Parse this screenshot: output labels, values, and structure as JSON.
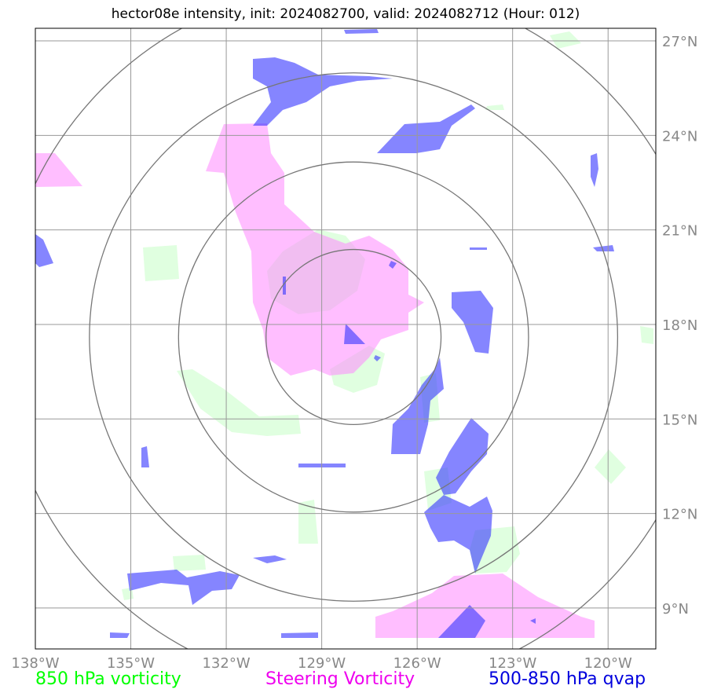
{
  "title": "hector08e intensity, init: 2024082700, valid: 2024082712 (Hour: 012)",
  "map": {
    "lon_range": [
      -138,
      -118.5
    ],
    "lat_range": [
      7.7,
      27.4
    ],
    "lon_ticks": [
      {
        "value": -138,
        "label": "138°W"
      },
      {
        "value": -135,
        "label": "135°W"
      },
      {
        "value": -132,
        "label": "132°W"
      },
      {
        "value": -129,
        "label": "129°W"
      },
      {
        "value": -126,
        "label": "126°W"
      },
      {
        "value": -123,
        "label": "123°W"
      },
      {
        "value": -120,
        "label": "120°W"
      }
    ],
    "lat_ticks": [
      {
        "value": 9,
        "label": "9°N"
      },
      {
        "value": 12,
        "label": "12°N"
      },
      {
        "value": 15,
        "label": "15°N"
      },
      {
        "value": 18,
        "label": "18°N"
      },
      {
        "value": 21,
        "label": "21°N"
      },
      {
        "value": 24,
        "label": "24°N"
      },
      {
        "value": 27,
        "label": "27°N"
      }
    ],
    "storm_center": {
      "lon": -128.0,
      "lat": 17.6
    },
    "range_rings_deg": [
      2.75,
      5.5,
      8.3,
      11.1
    ],
    "grid": true
  },
  "legend": {
    "green": {
      "label": "850 hPa vorticity",
      "color": "#00ff00"
    },
    "magenta": {
      "label": "Steering Vorticity",
      "color": "#ee00ee"
    },
    "blue": {
      "label": "500-850 hPa qvap",
      "color": "#0000dd"
    }
  },
  "fill_colors": {
    "vorticity_850": "#ccffcc",
    "steering_vorticity": "#ff88ff",
    "qvap": "#3333ff",
    "qvap_core": "#4400ee"
  }
}
